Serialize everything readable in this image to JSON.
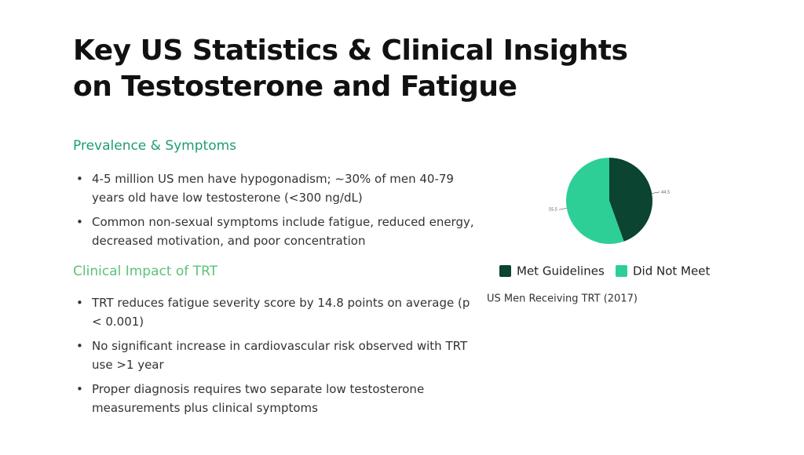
{
  "title": "Key US Statistics & Clinical Insights on Testosterone and Fatigue",
  "sections": [
    {
      "heading": "Prevalence & Symptoms",
      "bullets": [
        "4-5 million US men have hypogonadism; ~30% of men 40-79 years old have low testosterone (<300 ng/dL)",
        "Common non-sexual symptoms include fatigue, reduced energy, decreased motivation, and poor concentration"
      ]
    },
    {
      "heading": "Clinical Impact of TRT",
      "bullets": [
        "TRT reduces fatigue severity score by 14.8 points on average (p < 0.001)",
        "No significant increase in cardiovascular risk observed with TRT use >1 year",
        "Proper diagnosis requires two separate low testosterone measurements plus clinical symptoms"
      ]
    }
  ],
  "chart_data": {
    "type": "pie",
    "title": "US Men Receiving TRT (2017)",
    "categories": [
      "Met Guidelines",
      "Did Not Meet"
    ],
    "values": [
      44.5,
      55.5
    ],
    "colors": [
      "#0b4430",
      "#2dcf96"
    ],
    "legend": "bottom"
  }
}
